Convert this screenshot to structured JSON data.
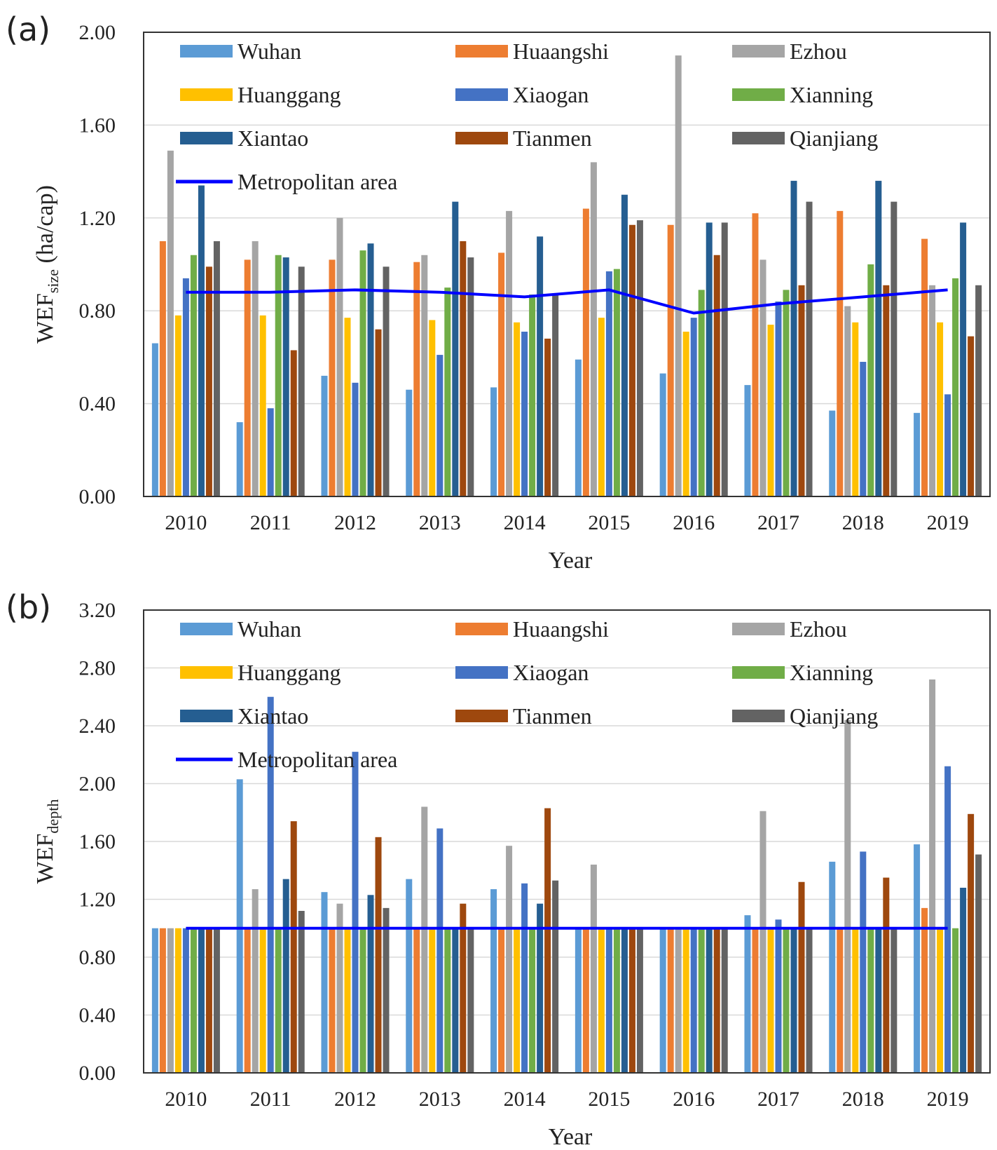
{
  "chart_data": [
    {
      "type": "bar",
      "panel_label": "(a)",
      "xlabel": "Year",
      "ylabel": "WEF",
      "ylabel_sub": "size",
      "ylabel_unit": " (ha/cap)",
      "ylim": [
        0,
        2.0
      ],
      "yticks": [
        "0.00",
        "0.40",
        "0.80",
        "1.20",
        "1.60",
        "2.00"
      ],
      "grid": true,
      "legend": "inside-top",
      "categories": [
        "2010",
        "2011",
        "2012",
        "2013",
        "2014",
        "2015",
        "2016",
        "2017",
        "2018",
        "2019"
      ],
      "series": [
        {
          "name": "Wuhan",
          "color": "#5B9BD5",
          "values": [
            0.66,
            0.32,
            0.52,
            0.46,
            0.47,
            0.59,
            0.53,
            0.48,
            0.37,
            0.36
          ]
        },
        {
          "name": "Huaangshi",
          "color": "#ED7D31",
          "values": [
            1.1,
            1.02,
            1.02,
            1.01,
            1.05,
            1.24,
            1.17,
            1.22,
            1.23,
            1.11
          ]
        },
        {
          "name": "Ezhou",
          "color": "#A5A5A5",
          "values": [
            1.49,
            1.1,
            1.2,
            1.04,
            1.23,
            1.44,
            1.9,
            1.02,
            0.82,
            0.91
          ]
        },
        {
          "name": "Huanggang",
          "color": "#FFC000",
          "values": [
            0.78,
            0.78,
            0.77,
            0.76,
            0.75,
            0.77,
            0.71,
            0.74,
            0.75,
            0.75
          ]
        },
        {
          "name": "Xiaogan",
          "color": "#4472C4",
          "values": [
            0.94,
            0.38,
            0.49,
            0.61,
            0.71,
            0.97,
            0.77,
            0.84,
            0.58,
            0.44
          ]
        },
        {
          "name": "Xianning",
          "color": "#70AD47",
          "values": [
            1.04,
            1.04,
            1.06,
            0.9,
            0.87,
            0.98,
            0.89,
            0.89,
            1.0,
            0.94
          ]
        },
        {
          "name": "Xiantao",
          "color": "#255E91",
          "values": [
            1.34,
            1.03,
            1.09,
            1.27,
            1.12,
            1.3,
            1.18,
            1.36,
            1.36,
            1.18
          ]
        },
        {
          "name": "Tianmen",
          "color": "#9E480E",
          "values": [
            0.99,
            0.63,
            0.72,
            1.1,
            0.68,
            1.17,
            1.04,
            0.91,
            0.91,
            0.69
          ]
        },
        {
          "name": "Qianjiang",
          "color": "#636363",
          "values": [
            1.1,
            0.99,
            0.99,
            1.03,
            0.87,
            1.19,
            1.18,
            1.27,
            1.27,
            0.91
          ]
        }
      ],
      "line": {
        "name": "Metropolitan area",
        "color": "#0000FF",
        "values": [
          0.88,
          0.88,
          0.89,
          0.88,
          0.86,
          0.89,
          0.79,
          0.83,
          0.86,
          0.89
        ]
      }
    },
    {
      "type": "bar",
      "panel_label": "(b)",
      "xlabel": "Year",
      "ylabel": "WEF",
      "ylabel_sub": "depth",
      "ylabel_unit": "",
      "ylim": [
        0,
        3.2
      ],
      "yticks": [
        "0.00",
        "0.40",
        "0.80",
        "1.20",
        "1.60",
        "2.00",
        "2.40",
        "2.80",
        "3.20"
      ],
      "grid": true,
      "legend": "inside-top",
      "categories": [
        "2010",
        "2011",
        "2012",
        "2013",
        "2014",
        "2015",
        "2016",
        "2017",
        "2018",
        "2019"
      ],
      "series": [
        {
          "name": "Wuhan",
          "color": "#5B9BD5",
          "values": [
            1.0,
            2.03,
            1.25,
            1.34,
            1.27,
            1.0,
            1.0,
            1.09,
            1.46,
            1.58
          ]
        },
        {
          "name": "Huaangshi",
          "color": "#ED7D31",
          "values": [
            1.0,
            1.0,
            1.0,
            1.0,
            1.0,
            1.0,
            1.0,
            1.0,
            1.0,
            1.14
          ]
        },
        {
          "name": "Ezhou",
          "color": "#A5A5A5",
          "values": [
            1.0,
            1.27,
            1.17,
            1.84,
            1.57,
            1.44,
            1.0,
            1.81,
            2.44,
            2.72
          ]
        },
        {
          "name": "Huanggang",
          "color": "#FFC000",
          "values": [
            1.0,
            1.0,
            1.0,
            1.0,
            1.0,
            1.0,
            1.0,
            1.0,
            1.0,
            1.0
          ]
        },
        {
          "name": "Xiaogan",
          "color": "#4472C4",
          "values": [
            1.0,
            2.6,
            2.22,
            1.69,
            1.31,
            1.0,
            1.0,
            1.06,
            1.53,
            2.12
          ]
        },
        {
          "name": "Xianning",
          "color": "#70AD47",
          "values": [
            1.0,
            1.0,
            1.0,
            1.0,
            1.0,
            1.0,
            1.0,
            1.0,
            1.0,
            1.0
          ]
        },
        {
          "name": "Xiantao",
          "color": "#255E91",
          "values": [
            1.0,
            1.34,
            1.23,
            1.0,
            1.17,
            1.0,
            1.0,
            1.0,
            1.0,
            1.28
          ]
        },
        {
          "name": "Tianmen",
          "color": "#9E480E",
          "values": [
            1.0,
            1.74,
            1.63,
            1.17,
            1.83,
            1.0,
            1.0,
            1.32,
            1.35,
            1.79
          ]
        },
        {
          "name": "Qianjiang",
          "color": "#636363",
          "values": [
            1.0,
            1.12,
            1.14,
            1.0,
            1.33,
            1.0,
            1.0,
            1.0,
            1.0,
            1.51
          ]
        }
      ],
      "line": {
        "name": "Metropolitan area",
        "color": "#0000FF",
        "values": [
          1.0,
          1.0,
          1.0,
          1.0,
          1.0,
          1.0,
          1.0,
          1.0,
          1.0,
          1.0
        ]
      }
    }
  ]
}
